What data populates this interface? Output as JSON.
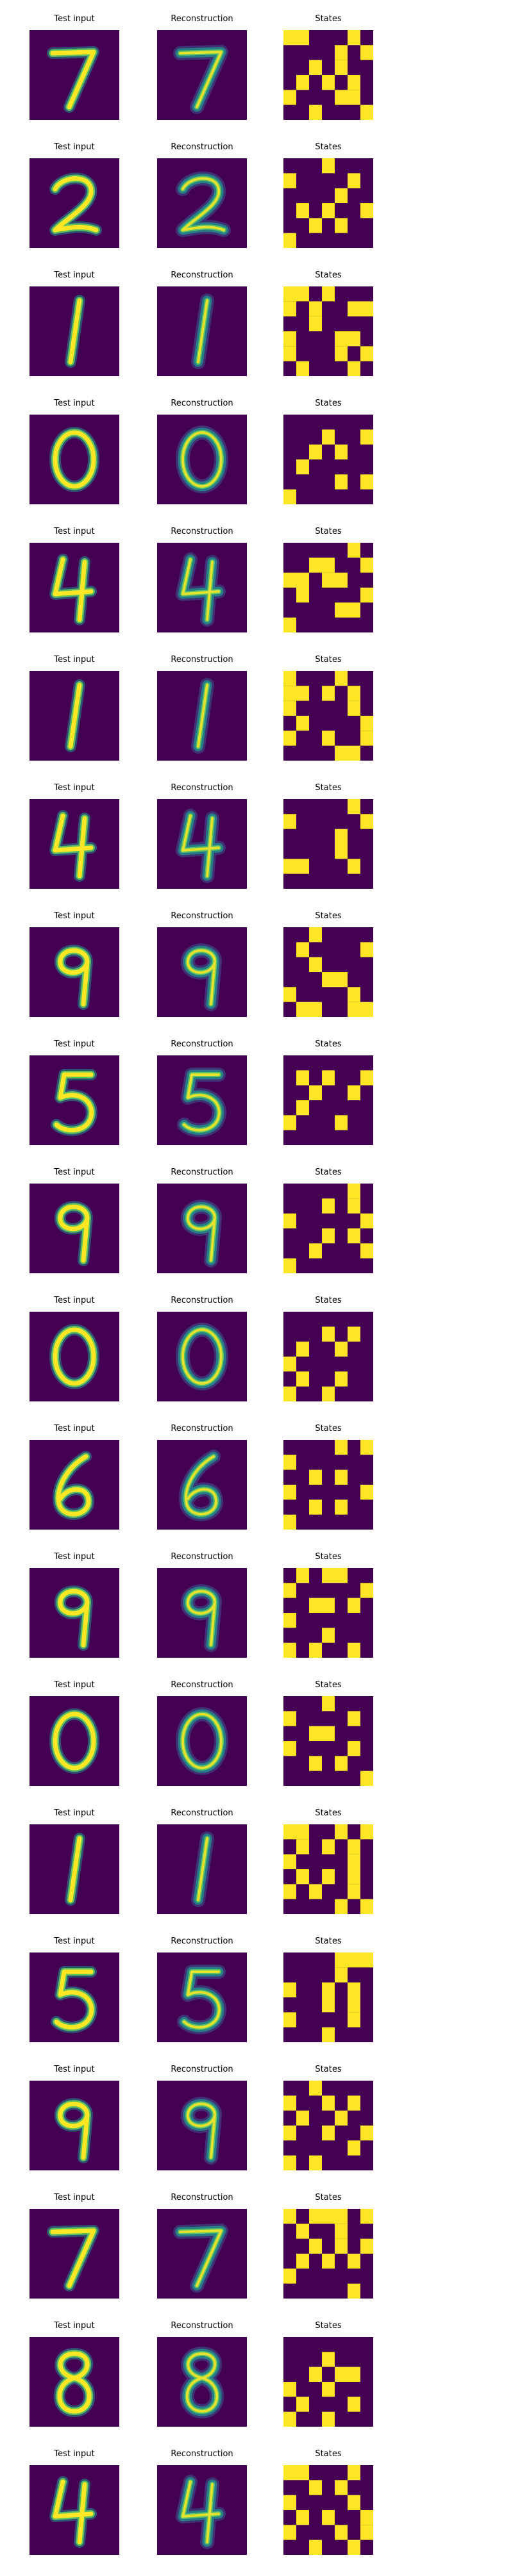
{
  "figure": {
    "column_titles": {
      "input": "Test input",
      "reconstruction": "Reconstruction",
      "states": "States"
    },
    "colormap": {
      "background": "#440154",
      "low": "#3b528b",
      "mid": "#21918c",
      "high": "#5ec962",
      "peak": "#fde725"
    },
    "rows": [
      {
        "digit": "7",
        "states": [
          [
            1,
            1,
            0,
            0,
            0,
            1,
            0
          ],
          [
            0,
            0,
            0,
            0,
            1,
            0,
            1
          ],
          [
            0,
            0,
            1,
            0,
            1,
            0,
            0
          ],
          [
            0,
            1,
            0,
            1,
            0,
            1,
            0
          ],
          [
            1,
            0,
            0,
            0,
            1,
            1,
            0
          ],
          [
            0,
            0,
            1,
            0,
            0,
            0,
            1
          ]
        ]
      },
      {
        "digit": "2",
        "states": [
          [
            0,
            0,
            0,
            1,
            0,
            0,
            0
          ],
          [
            1,
            0,
            0,
            0,
            0,
            1,
            0
          ],
          [
            0,
            0,
            0,
            0,
            1,
            0,
            0
          ],
          [
            0,
            1,
            0,
            1,
            0,
            0,
            1
          ],
          [
            0,
            0,
            1,
            0,
            1,
            0,
            0
          ],
          [
            1,
            0,
            0,
            0,
            0,
            0,
            0
          ]
        ]
      },
      {
        "digit": "1",
        "states": [
          [
            1,
            1,
            0,
            1,
            0,
            0,
            0
          ],
          [
            1,
            0,
            1,
            0,
            0,
            1,
            1
          ],
          [
            0,
            0,
            1,
            0,
            0,
            0,
            0
          ],
          [
            1,
            0,
            0,
            0,
            1,
            1,
            0
          ],
          [
            1,
            0,
            0,
            0,
            1,
            0,
            1
          ],
          [
            0,
            1,
            0,
            0,
            0,
            1,
            0
          ]
        ]
      },
      {
        "digit": "0",
        "states": [
          [
            0,
            0,
            0,
            0,
            0,
            0,
            0
          ],
          [
            0,
            0,
            0,
            1,
            0,
            0,
            1
          ],
          [
            0,
            0,
            1,
            0,
            1,
            0,
            0
          ],
          [
            0,
            1,
            0,
            0,
            0,
            0,
            0
          ],
          [
            0,
            0,
            0,
            0,
            1,
            0,
            1
          ],
          [
            1,
            0,
            0,
            0,
            0,
            0,
            0
          ]
        ]
      },
      {
        "digit": "4",
        "states": [
          [
            0,
            0,
            0,
            0,
            0,
            1,
            0
          ],
          [
            0,
            0,
            1,
            1,
            0,
            0,
            1
          ],
          [
            1,
            1,
            0,
            1,
            1,
            0,
            0
          ],
          [
            0,
            1,
            0,
            0,
            0,
            0,
            1
          ],
          [
            0,
            0,
            0,
            0,
            1,
            1,
            0
          ],
          [
            1,
            0,
            0,
            0,
            0,
            0,
            0
          ]
        ]
      },
      {
        "digit": "1",
        "states": [
          [
            1,
            0,
            0,
            0,
            1,
            0,
            0
          ],
          [
            1,
            1,
            0,
            1,
            0,
            1,
            0
          ],
          [
            1,
            0,
            0,
            0,
            0,
            1,
            0
          ],
          [
            0,
            1,
            0,
            0,
            0,
            0,
            1
          ],
          [
            1,
            0,
            0,
            1,
            0,
            0,
            1
          ],
          [
            0,
            0,
            0,
            0,
            1,
            1,
            0
          ]
        ]
      },
      {
        "digit": "4",
        "states": [
          [
            0,
            0,
            0,
            0,
            0,
            1,
            0
          ],
          [
            1,
            0,
            0,
            0,
            0,
            0,
            1
          ],
          [
            0,
            0,
            0,
            0,
            1,
            0,
            0
          ],
          [
            0,
            0,
            0,
            0,
            1,
            0,
            0
          ],
          [
            1,
            1,
            0,
            0,
            0,
            1,
            0
          ],
          [
            0,
            0,
            0,
            0,
            0,
            0,
            0
          ]
        ]
      },
      {
        "digit": "9",
        "states": [
          [
            0,
            0,
            1,
            0,
            0,
            0,
            0
          ],
          [
            0,
            1,
            0,
            0,
            0,
            0,
            1
          ],
          [
            0,
            0,
            1,
            0,
            0,
            0,
            0
          ],
          [
            0,
            0,
            0,
            1,
            1,
            0,
            0
          ],
          [
            1,
            0,
            0,
            0,
            0,
            1,
            0
          ],
          [
            0,
            1,
            1,
            0,
            0,
            1,
            1
          ]
        ]
      },
      {
        "digit": "5",
        "states": [
          [
            0,
            0,
            0,
            0,
            0,
            0,
            0
          ],
          [
            0,
            1,
            0,
            1,
            0,
            0,
            1
          ],
          [
            0,
            0,
            1,
            0,
            0,
            1,
            0
          ],
          [
            0,
            1,
            0,
            0,
            0,
            0,
            0
          ],
          [
            1,
            0,
            0,
            0,
            1,
            0,
            0
          ],
          [
            0,
            0,
            0,
            0,
            0,
            0,
            0
          ]
        ]
      },
      {
        "digit": "9",
        "states": [
          [
            0,
            0,
            0,
            0,
            0,
            1,
            0
          ],
          [
            0,
            0,
            0,
            1,
            0,
            1,
            0
          ],
          [
            1,
            0,
            0,
            0,
            0,
            0,
            1
          ],
          [
            0,
            0,
            0,
            1,
            0,
            1,
            0
          ],
          [
            0,
            0,
            1,
            0,
            0,
            0,
            1
          ],
          [
            1,
            0,
            0,
            0,
            0,
            0,
            0
          ]
        ]
      },
      {
        "digit": "0",
        "states": [
          [
            0,
            0,
            0,
            0,
            0,
            0,
            0
          ],
          [
            0,
            0,
            0,
            1,
            0,
            1,
            0
          ],
          [
            0,
            1,
            0,
            0,
            1,
            0,
            0
          ],
          [
            1,
            0,
            0,
            0,
            0,
            0,
            0
          ],
          [
            0,
            1,
            0,
            0,
            1,
            0,
            0
          ],
          [
            1,
            0,
            0,
            1,
            0,
            0,
            0
          ]
        ]
      },
      {
        "digit": "6",
        "states": [
          [
            0,
            0,
            0,
            0,
            1,
            0,
            1
          ],
          [
            1,
            0,
            0,
            0,
            0,
            0,
            0
          ],
          [
            0,
            0,
            1,
            0,
            1,
            0,
            0
          ],
          [
            1,
            0,
            0,
            0,
            0,
            0,
            1
          ],
          [
            0,
            0,
            1,
            0,
            1,
            0,
            0
          ],
          [
            1,
            0,
            0,
            0,
            0,
            0,
            0
          ]
        ]
      },
      {
        "digit": "9",
        "states": [
          [
            0,
            1,
            0,
            1,
            1,
            0,
            0
          ],
          [
            1,
            0,
            0,
            0,
            0,
            0,
            1
          ],
          [
            0,
            0,
            1,
            1,
            0,
            1,
            0
          ],
          [
            1,
            0,
            0,
            0,
            0,
            0,
            0
          ],
          [
            0,
            0,
            0,
            1,
            0,
            0,
            0
          ],
          [
            1,
            0,
            1,
            0,
            0,
            1,
            0
          ]
        ]
      },
      {
        "digit": "0",
        "states": [
          [
            0,
            0,
            0,
            1,
            0,
            0,
            0
          ],
          [
            1,
            0,
            0,
            0,
            0,
            1,
            0
          ],
          [
            0,
            0,
            1,
            1,
            0,
            0,
            0
          ],
          [
            1,
            0,
            0,
            0,
            0,
            1,
            0
          ],
          [
            0,
            0,
            1,
            0,
            1,
            0,
            0
          ],
          [
            0,
            0,
            0,
            0,
            0,
            0,
            1
          ]
        ]
      },
      {
        "digit": "1",
        "states": [
          [
            1,
            1,
            0,
            0,
            1,
            0,
            1
          ],
          [
            0,
            1,
            0,
            1,
            0,
            1,
            0
          ],
          [
            1,
            0,
            0,
            0,
            0,
            1,
            0
          ],
          [
            0,
            1,
            0,
            1,
            0,
            1,
            0
          ],
          [
            1,
            0,
            1,
            0,
            0,
            1,
            0
          ],
          [
            0,
            0,
            0,
            0,
            1,
            0,
            1
          ]
        ]
      },
      {
        "digit": "5",
        "states": [
          [
            0,
            0,
            0,
            0,
            1,
            1,
            1
          ],
          [
            0,
            0,
            0,
            0,
            1,
            0,
            0
          ],
          [
            1,
            0,
            0,
            1,
            0,
            1,
            0
          ],
          [
            0,
            0,
            0,
            1,
            0,
            1,
            0
          ],
          [
            1,
            0,
            0,
            0,
            0,
            1,
            0
          ],
          [
            0,
            0,
            0,
            1,
            0,
            0,
            0
          ]
        ]
      },
      {
        "digit": "9",
        "states": [
          [
            0,
            0,
            1,
            0,
            0,
            0,
            0
          ],
          [
            1,
            0,
            0,
            1,
            0,
            1,
            0
          ],
          [
            0,
            1,
            0,
            0,
            1,
            0,
            0
          ],
          [
            1,
            0,
            0,
            1,
            0,
            0,
            1
          ],
          [
            0,
            0,
            0,
            0,
            0,
            1,
            0
          ],
          [
            1,
            0,
            1,
            0,
            0,
            0,
            0
          ]
        ]
      },
      {
        "digit": "7",
        "states": [
          [
            1,
            0,
            1,
            1,
            1,
            0,
            1
          ],
          [
            0,
            1,
            0,
            0,
            1,
            0,
            0
          ],
          [
            0,
            0,
            1,
            0,
            1,
            0,
            1
          ],
          [
            0,
            1,
            0,
            1,
            0,
            1,
            0
          ],
          [
            1,
            0,
            0,
            0,
            0,
            0,
            0
          ],
          [
            0,
            0,
            0,
            0,
            0,
            1,
            0
          ]
        ]
      },
      {
        "digit": "8",
        "states": [
          [
            0,
            0,
            0,
            0,
            0,
            0,
            0
          ],
          [
            0,
            0,
            0,
            1,
            0,
            0,
            0
          ],
          [
            0,
            0,
            1,
            0,
            1,
            1,
            0
          ],
          [
            1,
            0,
            0,
            1,
            0,
            0,
            0
          ],
          [
            0,
            1,
            0,
            0,
            0,
            1,
            0
          ],
          [
            1,
            0,
            0,
            1,
            0,
            0,
            0
          ]
        ]
      },
      {
        "digit": "4",
        "states": [
          [
            1,
            1,
            0,
            0,
            0,
            1,
            0
          ],
          [
            0,
            0,
            1,
            0,
            1,
            0,
            0
          ],
          [
            1,
            0,
            0,
            0,
            0,
            1,
            0
          ],
          [
            0,
            1,
            0,
            1,
            0,
            0,
            1
          ],
          [
            1,
            0,
            0,
            0,
            1,
            0,
            1
          ],
          [
            0,
            0,
            1,
            0,
            0,
            1,
            0
          ]
        ]
      }
    ]
  }
}
